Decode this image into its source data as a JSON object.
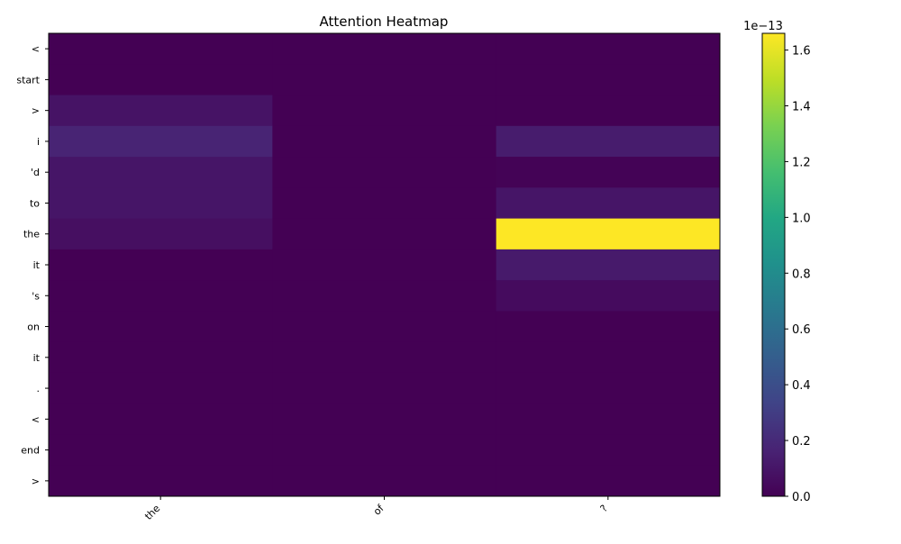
{
  "chart_data": {
    "type": "heatmap",
    "title": "Attention Heatmap",
    "x_tokens": [
      "the",
      "of",
      "?"
    ],
    "y_tokens": [
      "<",
      "start",
      ">",
      "i",
      "'d",
      "to",
      "the",
      "it",
      "'s",
      "on",
      "it",
      ".",
      "<",
      "end",
      ">"
    ],
    "values": [
      [
        0,
        0,
        0
      ],
      [
        0,
        0,
        0
      ],
      [
        9e-15,
        0,
        0
      ],
      [
        1.7e-14,
        0,
        1.3e-14
      ],
      [
        1e-14,
        0,
        1e-15
      ],
      [
        1e-14,
        0,
        1e-14
      ],
      [
        7e-15,
        0,
        1.66e-13
      ],
      [
        0,
        0,
        1.2e-14
      ],
      [
        0,
        0,
        5e-15
      ],
      [
        0,
        0,
        0
      ],
      [
        0,
        0,
        0
      ],
      [
        0,
        0,
        0
      ],
      [
        0,
        0,
        0
      ],
      [
        0,
        0,
        0
      ],
      [
        0,
        0,
        0
      ]
    ],
    "colormap": "viridis",
    "colorbar": {
      "min": 0,
      "max": 1.66e-13,
      "ticks": [
        0.0,
        0.2,
        0.4,
        0.6,
        0.8,
        1.0,
        1.2,
        1.4,
        1.6
      ],
      "tick_labels": [
        "0.0",
        "0.2",
        "0.4",
        "0.6",
        "0.8",
        "1.0",
        "1.2",
        "1.4",
        "1.6"
      ],
      "offset_label": "1e−13",
      "scale": 1e-13
    },
    "grid": false
  }
}
